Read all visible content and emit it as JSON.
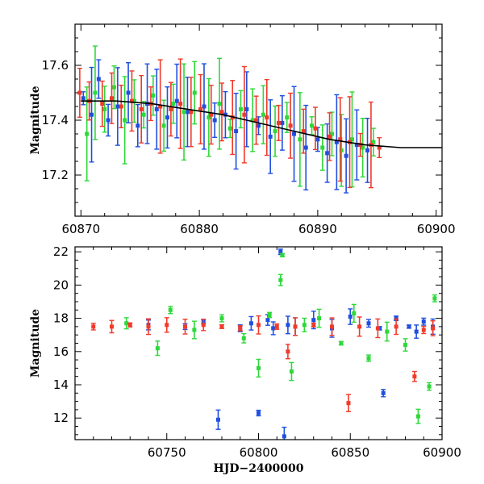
{
  "chart_data": [
    {
      "type": "scatter",
      "panel": "top",
      "title": "",
      "xlabel": "",
      "ylabel": "Magnitude",
      "xlim": [
        60869.5,
        60900.5
      ],
      "ylim": [
        17.75,
        17.05
      ],
      "y_inverted": true,
      "xticks": [
        60870,
        60880,
        60890,
        60900
      ],
      "xtick_labels": [
        "60870",
        "60880",
        "60890",
        "60900"
      ],
      "yticks": [
        17.2,
        17.4,
        17.6
      ],
      "ytick_labels": [
        "17.2",
        "17.4",
        "17.6"
      ],
      "grid": false,
      "error_bars": true,
      "series": [
        {
          "color": "#1f4fe0",
          "x": [
            60870.2,
            60870.9,
            60871.5,
            60872.3,
            60873.1,
            60874.0,
            60874.8,
            60875.6,
            60876.4,
            60877.3,
            60878.1,
            60879.0,
            60880.4,
            60881.3,
            60882.2,
            60883.1,
            60884.0,
            60885.0,
            60886.0,
            60887.0,
            60888.0,
            60889.0,
            60890.0,
            60890.8,
            60891.6,
            60892.4,
            60893.3,
            60894.2
          ],
          "y": [
            17.48,
            17.42,
            17.55,
            17.4,
            17.45,
            17.5,
            17.38,
            17.46,
            17.44,
            17.41,
            17.47,
            17.43,
            17.45,
            17.4,
            17.42,
            17.36,
            17.44,
            17.38,
            17.34,
            17.39,
            17.35,
            17.3,
            17.33,
            17.28,
            17.32,
            17.27,
            17.31,
            17.29
          ]
        },
        {
          "color": "#2fd83a",
          "x": [
            60870.5,
            60871.2,
            60872.0,
            60872.8,
            60873.7,
            60874.5,
            60875.3,
            60876.1,
            60877.0,
            60877.8,
            60878.7,
            60879.6,
            60880.8,
            60881.7,
            60882.6,
            60883.5,
            60884.5,
            60885.4,
            60886.4,
            60887.4,
            60888.5,
            60889.5,
            60890.4,
            60891.2,
            60892.0,
            60892.9,
            60893.8,
            60894.7
          ],
          "y": [
            17.35,
            17.5,
            17.44,
            17.52,
            17.4,
            17.47,
            17.42,
            17.49,
            17.38,
            17.46,
            17.43,
            17.5,
            17.41,
            17.46,
            17.37,
            17.44,
            17.4,
            17.42,
            17.36,
            17.41,
            17.33,
            17.38,
            17.3,
            17.35,
            17.29,
            17.33,
            17.3,
            17.32
          ]
        },
        {
          "color": "#f03a2a",
          "x": [
            60869.9,
            60870.7,
            60871.8,
            60872.6,
            60873.4,
            60874.3,
            60875.1,
            60875.9,
            60876.7,
            60877.6,
            60878.4,
            60879.3,
            60880.1,
            60881.0,
            60881.9,
            60882.8,
            60883.8,
            60884.8,
            60885.7,
            60886.7,
            60887.7,
            60888.8,
            60889.8,
            60891.0,
            60891.9,
            60892.7,
            60893.6,
            60894.5,
            60895.2
          ],
          "y": [
            17.5,
            17.47,
            17.46,
            17.48,
            17.45,
            17.47,
            17.44,
            17.46,
            17.45,
            17.44,
            17.46,
            17.43,
            17.44,
            17.42,
            17.43,
            17.41,
            17.42,
            17.4,
            17.41,
            17.39,
            17.38,
            17.36,
            17.37,
            17.34,
            17.33,
            17.32,
            17.31,
            17.31,
            17.3
          ]
        }
      ],
      "trend": {
        "color": "#000000",
        "x": [
          60870,
          60873,
          60876,
          60879,
          60882,
          60885,
          60888,
          60891,
          60894,
          60897,
          60899,
          60900.5
        ],
        "y": [
          17.47,
          17.47,
          17.46,
          17.44,
          17.42,
          17.39,
          17.36,
          17.33,
          17.31,
          17.3,
          17.3,
          17.3
        ]
      }
    },
    {
      "type": "scatter",
      "panel": "bottom",
      "title": "",
      "xlabel": "HJD−2400000",
      "ylabel": "Magnitude",
      "xlim": [
        60700,
        60900
      ],
      "ylim": [
        22.3,
        10.7
      ],
      "y_inverted": true,
      "xticks": [
        60750,
        60800,
        60850,
        60900
      ],
      "xtick_labels": [
        "60750",
        "60800",
        "60850",
        "60900"
      ],
      "yticks": [
        12,
        14,
        16,
        18,
        20,
        22
      ],
      "ytick_labels": [
        "12",
        "14",
        "16",
        "18",
        "20",
        "22"
      ],
      "grid": false,
      "error_bars": true,
      "series": [
        {
          "color": "#1f4fe0",
          "x": [
            60740,
            60760,
            60770,
            60778,
            60790,
            60796,
            60800,
            60805,
            60808,
            60812,
            60814,
            60816,
            60820,
            60830,
            60840,
            60850,
            60860,
            60866,
            60868,
            60875,
            60882,
            60886,
            60890,
            60895
          ],
          "y": [
            17.6,
            17.5,
            17.8,
            11.9,
            17.4,
            17.7,
            12.3,
            17.9,
            17.4,
            22.0,
            10.9,
            17.6,
            17.5,
            17.9,
            17.4,
            18.1,
            17.7,
            17.4,
            13.5,
            18.0,
            17.5,
            17.2,
            17.8,
            17.5
          ]
        },
        {
          "color": "#2fd83a",
          "x": [
            60728,
            60745,
            60752,
            60765,
            60780,
            60792,
            60800,
            60806,
            60812,
            60813,
            60818,
            60825,
            60833,
            60845,
            60852,
            60860,
            60870,
            60880,
            60887,
            60893,
            60896
          ],
          "y": [
            17.7,
            16.2,
            18.5,
            17.3,
            18.0,
            16.8,
            15.0,
            18.2,
            20.3,
            21.8,
            14.8,
            17.6,
            18.0,
            16.5,
            18.3,
            15.6,
            17.2,
            16.4,
            12.1,
            13.9,
            19.2
          ]
        },
        {
          "color": "#f03a2a",
          "x": [
            60710,
            60720,
            60730,
            60740,
            60750,
            60760,
            60770,
            60780,
            60790,
            60800,
            60810,
            60816,
            60820,
            60830,
            60840,
            60849,
            60855,
            60865,
            60875,
            60885,
            60890,
            60895
          ],
          "y": [
            17.5,
            17.5,
            17.6,
            17.5,
            17.6,
            17.5,
            17.6,
            17.5,
            17.4,
            17.6,
            17.5,
            16.0,
            17.5,
            17.6,
            17.5,
            12.9,
            17.5,
            17.4,
            17.5,
            14.5,
            17.3,
            17.4
          ]
        }
      ]
    }
  ]
}
